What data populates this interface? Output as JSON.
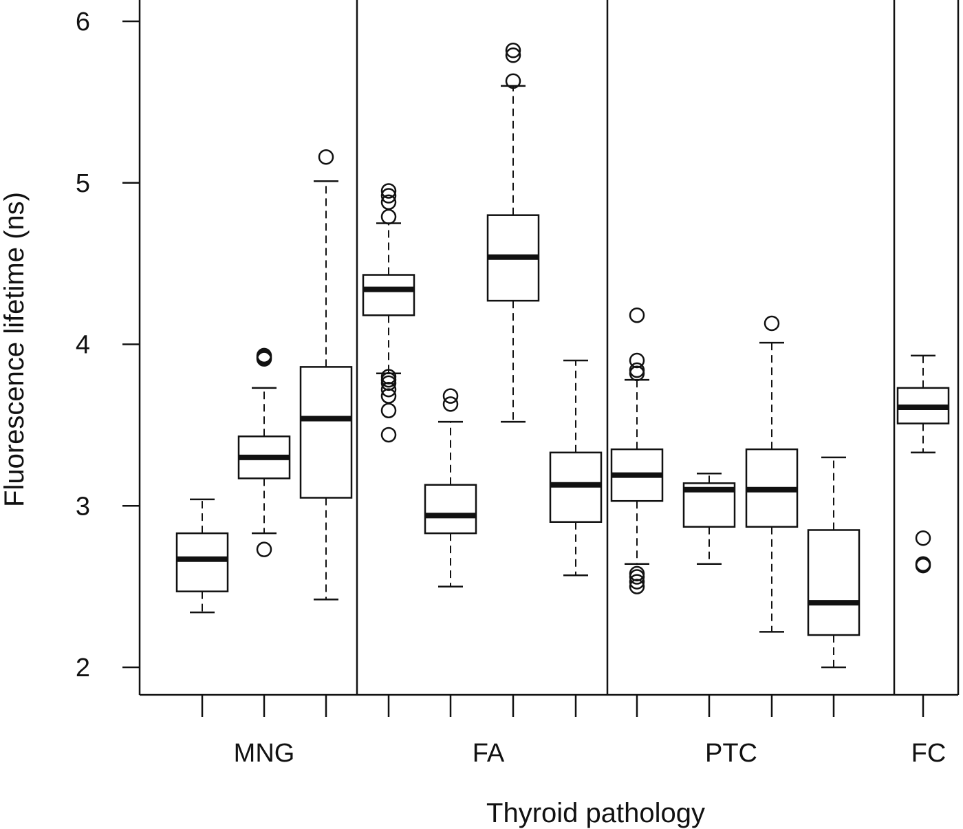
{
  "chart_data": {
    "type": "boxplot",
    "title": "",
    "xlabel": "Thyroid pathology",
    "ylabel": "Fluorescence lifetime (ns)",
    "ylim": [
      1.83,
      6.13
    ],
    "yticks": [
      2,
      3,
      4,
      5,
      6
    ],
    "grid": false,
    "groups": [
      {
        "name": "MNG",
        "boxes": [
          {
            "whisker_low": 2.34,
            "q1": 2.47,
            "median": 2.67,
            "q3": 2.83,
            "whisker_high": 3.04,
            "outliers": []
          },
          {
            "whisker_low": 2.83,
            "q1": 3.17,
            "median": 3.3,
            "q3": 3.43,
            "whisker_high": 3.73,
            "outliers": [
              2.73,
              3.91,
              3.92,
              3.93
            ]
          },
          {
            "whisker_low": 2.42,
            "q1": 3.05,
            "median": 3.54,
            "q3": 3.86,
            "whisker_high": 5.01,
            "outliers": [
              5.16
            ]
          }
        ]
      },
      {
        "name": "FA",
        "boxes": [
          {
            "whisker_low": 3.82,
            "q1": 4.18,
            "median": 4.34,
            "q3": 4.43,
            "whisker_high": 4.75,
            "outliers": [
              3.44,
              3.59,
              3.68,
              3.72,
              3.76,
              3.78,
              3.8,
              4.79,
              4.88,
              4.92,
              4.95
            ]
          },
          {
            "whisker_low": 2.5,
            "q1": 2.83,
            "median": 2.94,
            "q3": 3.13,
            "whisker_high": 3.52,
            "outliers": [
              3.63,
              3.68
            ]
          },
          {
            "whisker_low": 3.52,
            "q1": 4.27,
            "median": 4.54,
            "q3": 4.8,
            "whisker_high": 5.6,
            "outliers": [
              5.63,
              5.79,
              5.82
            ]
          },
          {
            "whisker_low": 2.57,
            "q1": 2.9,
            "median": 3.13,
            "q3": 3.33,
            "whisker_high": 3.9,
            "outliers": []
          }
        ]
      },
      {
        "name": "PTC",
        "boxes": [
          {
            "whisker_low": 2.64,
            "q1": 3.03,
            "median": 3.19,
            "q3": 3.35,
            "whisker_high": 3.78,
            "outliers": [
              2.5,
              2.53,
              2.56,
              2.58,
              3.82,
              3.84,
              3.9,
              4.18
            ]
          },
          {
            "whisker_low": 2.64,
            "q1": 2.87,
            "median": 3.1,
            "q3": 3.14,
            "whisker_high": 3.2,
            "outliers": []
          },
          {
            "whisker_low": 2.22,
            "q1": 2.87,
            "median": 3.1,
            "q3": 3.35,
            "whisker_high": 4.01,
            "outliers": [
              4.13
            ]
          },
          {
            "whisker_low": 2.0,
            "q1": 2.2,
            "median": 2.4,
            "q3": 2.85,
            "whisker_high": 3.3,
            "outliers": []
          }
        ]
      },
      {
        "name": "FC",
        "boxes": [
          {
            "whisker_low": 3.33,
            "q1": 3.51,
            "median": 3.61,
            "q3": 3.73,
            "whisker_high": 3.93,
            "outliers": [
              2.63,
              2.64,
              2.8
            ]
          }
        ]
      }
    ]
  }
}
